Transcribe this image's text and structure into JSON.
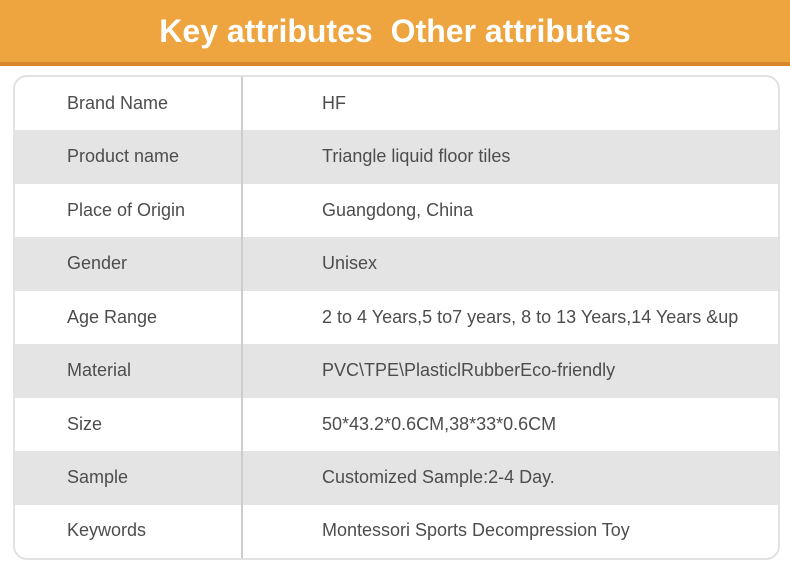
{
  "theme": {
    "accent_orange": "#eea43f",
    "accent_orange_dark": "#d8872b",
    "zebra_gray": "#e4e4e4",
    "text_color": "#4d4d4d"
  },
  "header": {
    "tabs": [
      {
        "label": "Key attributes"
      },
      {
        "label": "Other attributes"
      }
    ]
  },
  "table": {
    "rows": [
      {
        "label": "Brand Name",
        "value": "HF"
      },
      {
        "label": "Product name",
        "value": "Triangle liquid floor tiles"
      },
      {
        "label": "Place of Origin",
        "value": "Guangdong, China"
      },
      {
        "label": "Gender",
        "value": "Unisex"
      },
      {
        "label": "Age Range",
        "value": "2 to 4 Years,5 to7 years, 8 to 13 Years,14 Years &up"
      },
      {
        "label": "Material",
        "value": "PVC\\TPE\\PlasticlRubberEco-friendly"
      },
      {
        "label": "Size",
        "value": "50*43.2*0.6CM,38*33*0.6CM"
      },
      {
        "label": "Sample",
        "value": "Customized Sample:2-4 Day."
      },
      {
        "label": "Keywords",
        "value": "Montessori Sports Decompression Toy"
      }
    ]
  }
}
